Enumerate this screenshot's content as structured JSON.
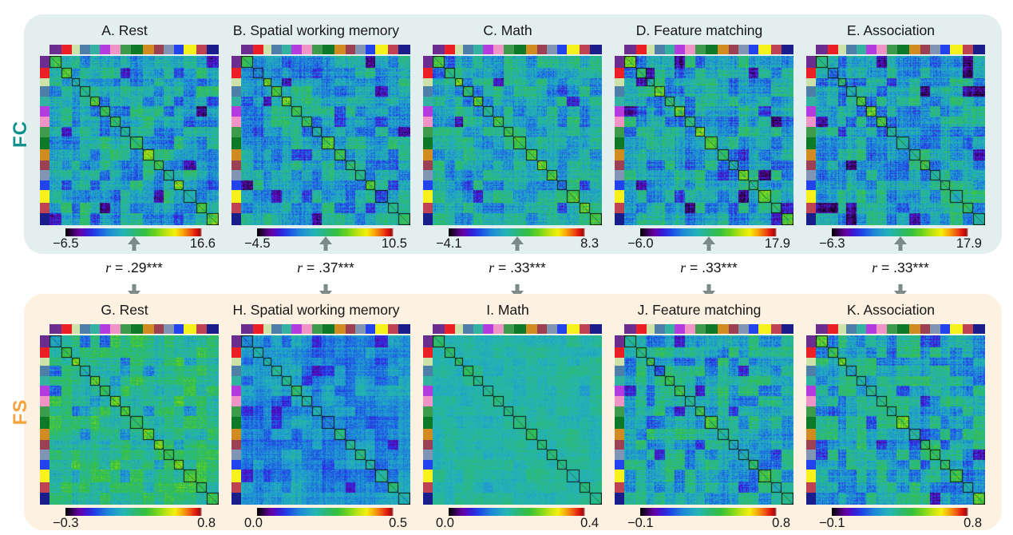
{
  "figure": {
    "fc_label": "FC",
    "fs_label": "FS",
    "fc_label_color": "#0f918d",
    "fs_label_color": "#f9a23a",
    "fc_band_bg": "#e3efee",
    "fs_band_bg": "#fdf2e1",
    "arrow_color": "#7c8a8a"
  },
  "network_colors": [
    "#6b2d8f",
    "#ec2024",
    "#cde2a8",
    "#4e7fa9",
    "#33b2a1",
    "#b43be0",
    "#f093c7",
    "#3d9c4b",
    "#0d7a28",
    "#d08b21",
    "#9c4153",
    "#8095b4",
    "#2244ee",
    "#f7f11d",
    "#be4252",
    "#1a1e8c"
  ],
  "network_block_sizes": [
    13,
    12,
    9,
    11,
    11,
    11,
    12,
    11,
    14,
    12,
    11,
    11,
    11,
    14,
    12,
    13
  ],
  "correlations": [
    {
      "var": "r",
      "eq": " = ",
      "value": ".29***"
    },
    {
      "var": "r",
      "eq": " = ",
      "value": ".37***"
    },
    {
      "var": "r",
      "eq": " = ",
      "value": ".33***"
    },
    {
      "var": "r",
      "eq": " = ",
      "value": ".33***"
    },
    {
      "var": "r",
      "eq": " = ",
      "value": ".33***"
    }
  ],
  "chart_data": {
    "type": "heatmap",
    "layout": "2 rows (FC, FS) x 5 condition columns; each heatmap is a network-by-network connectivity matrix with 16 network blocks outlined on the diagonal, colored network strips on top/left edges, jet-style colorbar below each matrix",
    "rows": [
      {
        "label": "FC",
        "panels": [
          {
            "id": "A",
            "title": "A. Rest",
            "min": -6.5,
            "max": 16.6,
            "min_label": "−6.5",
            "max_label": "16.6",
            "texture": {
              "seed": 11,
              "base": 0.4,
              "contrast": 1.0,
              "stripe": 0.09,
              "noise": 0.16,
              "diag": 0.16
            }
          },
          {
            "id": "B",
            "title": "B. Spatial working memory",
            "min": -4.5,
            "max": 10.5,
            "min_label": "−4.5",
            "max_label": "10.5",
            "texture": {
              "seed": 22,
              "base": 0.39,
              "contrast": 0.95,
              "stripe": 0.09,
              "noise": 0.16,
              "diag": 0.15
            }
          },
          {
            "id": "C",
            "title": "C. Math",
            "min": -4.1,
            "max": 8.3,
            "min_label": "−4.1",
            "max_label": "8.3",
            "texture": {
              "seed": 33,
              "base": 0.4,
              "contrast": 0.9,
              "stripe": 0.09,
              "noise": 0.16,
              "diag": 0.15
            }
          },
          {
            "id": "D",
            "title": "D. Feature matching",
            "min": -6.0,
            "max": 17.9,
            "min_label": "−6.0",
            "max_label": "17.9",
            "texture": {
              "seed": 44,
              "base": 0.38,
              "contrast": 1.1,
              "stripe": 0.1,
              "noise": 0.16,
              "diag": 0.16
            }
          },
          {
            "id": "E",
            "title": "E. Association",
            "min": -6.3,
            "max": 17.9,
            "min_label": "−6.3",
            "max_label": "17.9",
            "texture": {
              "seed": 55,
              "base": 0.38,
              "contrast": 1.05,
              "stripe": 0.1,
              "noise": 0.16,
              "diag": 0.14
            }
          }
        ]
      },
      {
        "label": "FS",
        "panels": [
          {
            "id": "G",
            "title": "G. Rest",
            "min": -0.3,
            "max": 0.8,
            "min_label": "−0.3",
            "max_label": "0.8",
            "texture": {
              "seed": 66,
              "base": 0.5,
              "contrast": 0.7,
              "stripe": 0.08,
              "noise": 0.14,
              "diag": 0.1
            }
          },
          {
            "id": "H",
            "title": "H. Spatial working memory",
            "min": 0.0,
            "max": 0.5,
            "min_label": "0.0",
            "max_label": "0.5",
            "texture": {
              "seed": 77,
              "base": 0.33,
              "contrast": 0.6,
              "stripe": 0.07,
              "noise": 0.12,
              "diag": 0.12
            }
          },
          {
            "id": "I",
            "title": "I. Math",
            "min": 0.0,
            "max": 0.4,
            "min_label": "0.0",
            "max_label": "0.4",
            "texture": {
              "seed": 88,
              "base": 0.44,
              "contrast": 0.3,
              "stripe": 0.04,
              "noise": 0.1,
              "diag": 0.06
            }
          },
          {
            "id": "J",
            "title": "J. Feature matching",
            "min": -0.1,
            "max": 0.8,
            "min_label": "−0.1",
            "max_label": "0.8",
            "texture": {
              "seed": 99,
              "base": 0.4,
              "contrast": 1.0,
              "stripe": 0.09,
              "noise": 0.15,
              "diag": 0.12
            }
          },
          {
            "id": "K",
            "title": "K. Association",
            "min": -0.1,
            "max": 0.8,
            "min_label": "−0.1",
            "max_label": "0.8",
            "texture": {
              "seed": 111,
              "base": 0.4,
              "contrast": 1.0,
              "stripe": 0.09,
              "noise": 0.15,
              "diag": 0.12
            }
          }
        ]
      }
    ],
    "correlations_between_rows": [
      {
        "between": [
          "A",
          "G"
        ],
        "r": 0.29,
        "sig": "***"
      },
      {
        "between": [
          "B",
          "H"
        ],
        "r": 0.37,
        "sig": "***"
      },
      {
        "between": [
          "C",
          "I"
        ],
        "r": 0.33,
        "sig": "***"
      },
      {
        "between": [
          "D",
          "J"
        ],
        "r": 0.33,
        "sig": "***"
      },
      {
        "between": [
          "E",
          "K"
        ],
        "r": 0.33,
        "sig": "***"
      }
    ],
    "n_network_blocks": 16
  }
}
